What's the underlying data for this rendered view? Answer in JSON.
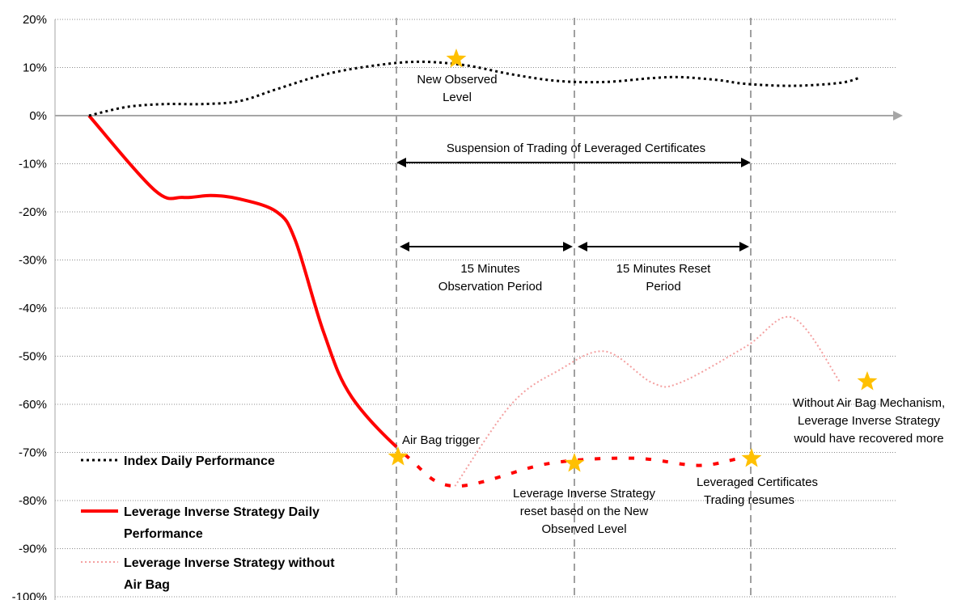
{
  "chart_data": {
    "type": "line",
    "title": "",
    "xlabel": "",
    "ylabel": "",
    "ylim": [
      -100,
      20
    ],
    "y_ticks": [
      "20%",
      "10%",
      "0%",
      "-10%",
      "-20%",
      "-30%",
      "-40%",
      "-50%",
      "-60%",
      "-70%",
      "-80%",
      "-90%",
      "-100%"
    ],
    "grid": "horizontal dotted",
    "legend_position": "bottom-left",
    "colors": {
      "index": "#000000",
      "strategy": "#ff0000",
      "no_airbag": "#f4a0a0",
      "star": "#ffc000",
      "vline": "#a0a0a0",
      "axis": "#a6a6a6"
    },
    "series": [
      {
        "name": "Index Daily Performance",
        "style": "dotted",
        "points": [
          [
            0,
            0
          ],
          [
            0.4,
            1.8
          ],
          [
            0.8,
            2.4
          ],
          [
            1.2,
            2.4
          ],
          [
            1.6,
            3.0
          ],
          [
            2.0,
            5.5
          ],
          [
            2.5,
            8.5
          ],
          [
            3.0,
            10.3
          ],
          [
            3.5,
            11.2
          ],
          [
            4.0,
            10.5
          ],
          [
            4.5,
            8.6
          ],
          [
            5.0,
            7.2
          ],
          [
            5.5,
            7.0
          ],
          [
            6.0,
            7.8
          ],
          [
            6.3,
            8.0
          ],
          [
            6.7,
            7.4
          ],
          [
            7.0,
            6.6
          ],
          [
            7.5,
            6.2
          ],
          [
            8.0,
            6.8
          ],
          [
            8.2,
            7.8
          ]
        ]
      },
      {
        "name": "Leverage Inverse Strategy Daily Performance",
        "style": "solid",
        "points": [
          [
            0,
            0
          ],
          [
            0.7,
            -15.5
          ],
          [
            1.0,
            -17.0
          ],
          [
            1.3,
            -16.6
          ],
          [
            1.6,
            -17.3
          ],
          [
            2.0,
            -20.0
          ],
          [
            2.2,
            -26.0
          ],
          [
            2.5,
            -45.0
          ],
          [
            2.8,
            -58.5
          ],
          [
            3.4,
            -71.0
          ],
          [
            3.9,
            -77.0
          ],
          [
            4.9,
            -72.3
          ],
          [
            5.8,
            -71.2
          ],
          [
            6.5,
            -72.7
          ],
          [
            7.0,
            -71.0
          ],
          [
            7.6,
            -69.8
          ],
          [
            8.2,
            -72.5
          ]
        ]
      },
      {
        "name": "Leverage Inverse Strategy without Air Bag",
        "style": "dotted",
        "points": [
          [
            3.9,
            -77.0
          ],
          [
            4.5,
            -60.0
          ],
          [
            5.0,
            -53.0
          ],
          [
            5.5,
            -49.0
          ],
          [
            6.0,
            -55.5
          ],
          [
            6.3,
            -55.5
          ],
          [
            7.0,
            -48.0
          ],
          [
            7.5,
            -42.0
          ],
          [
            8.0,
            -55.3
          ]
        ]
      }
    ],
    "annotations": {
      "suspension": "Suspension of  Trading of Leveraged Certificates",
      "observation_1": "15 Minutes",
      "observation_2": "Observation Period",
      "reset_1": "15  Minutes Reset",
      "reset_2": "Period",
      "new_level_1": "New Observed",
      "new_level_2": "Level",
      "airbag": "Air Bag trigger",
      "lis_reset_1": "Leverage Inverse Strategy",
      "lis_reset_2": "reset based on the New",
      "lis_reset_3": "Observed Level",
      "resume_1": "Leveraged Certificates",
      "resume_2": "Trading resumes",
      "no_airbag_1": "Without Air Bag Mechanism,",
      "no_airbag_2": "Leverage Inverse Strategy",
      "no_airbag_3": "would have recovered more"
    },
    "legend": {
      "index": "Index Daily Performance",
      "strategy_1": "Leverage Inverse Strategy Daily",
      "strategy_2": "Performance",
      "no_airbag_1": "Leverage Inverse Strategy without",
      "no_airbag_2": "Air Bag"
    }
  }
}
